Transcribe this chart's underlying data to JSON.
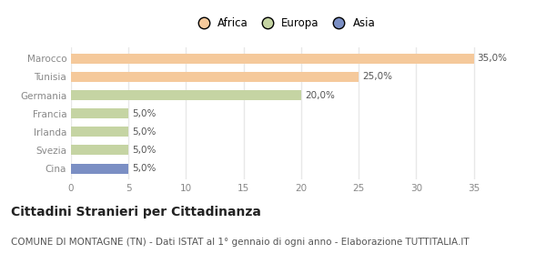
{
  "categories": [
    "Marocco",
    "Tunisia",
    "Germania",
    "Francia",
    "Irlanda",
    "Svezia",
    "Cina"
  ],
  "values": [
    35.0,
    25.0,
    20.0,
    5.0,
    5.0,
    5.0,
    5.0
  ],
  "colors": [
    "#F5C99B",
    "#F5C99B",
    "#C5D4A3",
    "#C5D4A3",
    "#C5D4A3",
    "#C5D4A3",
    "#7B8FC4"
  ],
  "labels": [
    "35,0%",
    "25,0%",
    "20,0%",
    "5,0%",
    "5,0%",
    "5,0%",
    "5,0%"
  ],
  "legend_entries": [
    {
      "label": "Africa",
      "color": "#F5C99B"
    },
    {
      "label": "Europa",
      "color": "#C5D4A3"
    },
    {
      "label": "Asia",
      "color": "#7B8FC4"
    }
  ],
  "xlim": [
    0,
    37
  ],
  "xticks": [
    0,
    5,
    10,
    15,
    20,
    25,
    30,
    35
  ],
  "title": "Cittadini Stranieri per Cittadinanza",
  "subtitle": "COMUNE DI MONTAGNE (TN) - Dati ISTAT al 1° gennaio di ogni anno - Elaborazione TUTTITALIA.IT",
  "background_color": "#ffffff",
  "grid_color": "#e8e8e8",
  "title_fontsize": 10,
  "subtitle_fontsize": 7.5,
  "bar_label_fontsize": 7.5,
  "tick_label_fontsize": 7.5,
  "legend_fontsize": 8.5
}
